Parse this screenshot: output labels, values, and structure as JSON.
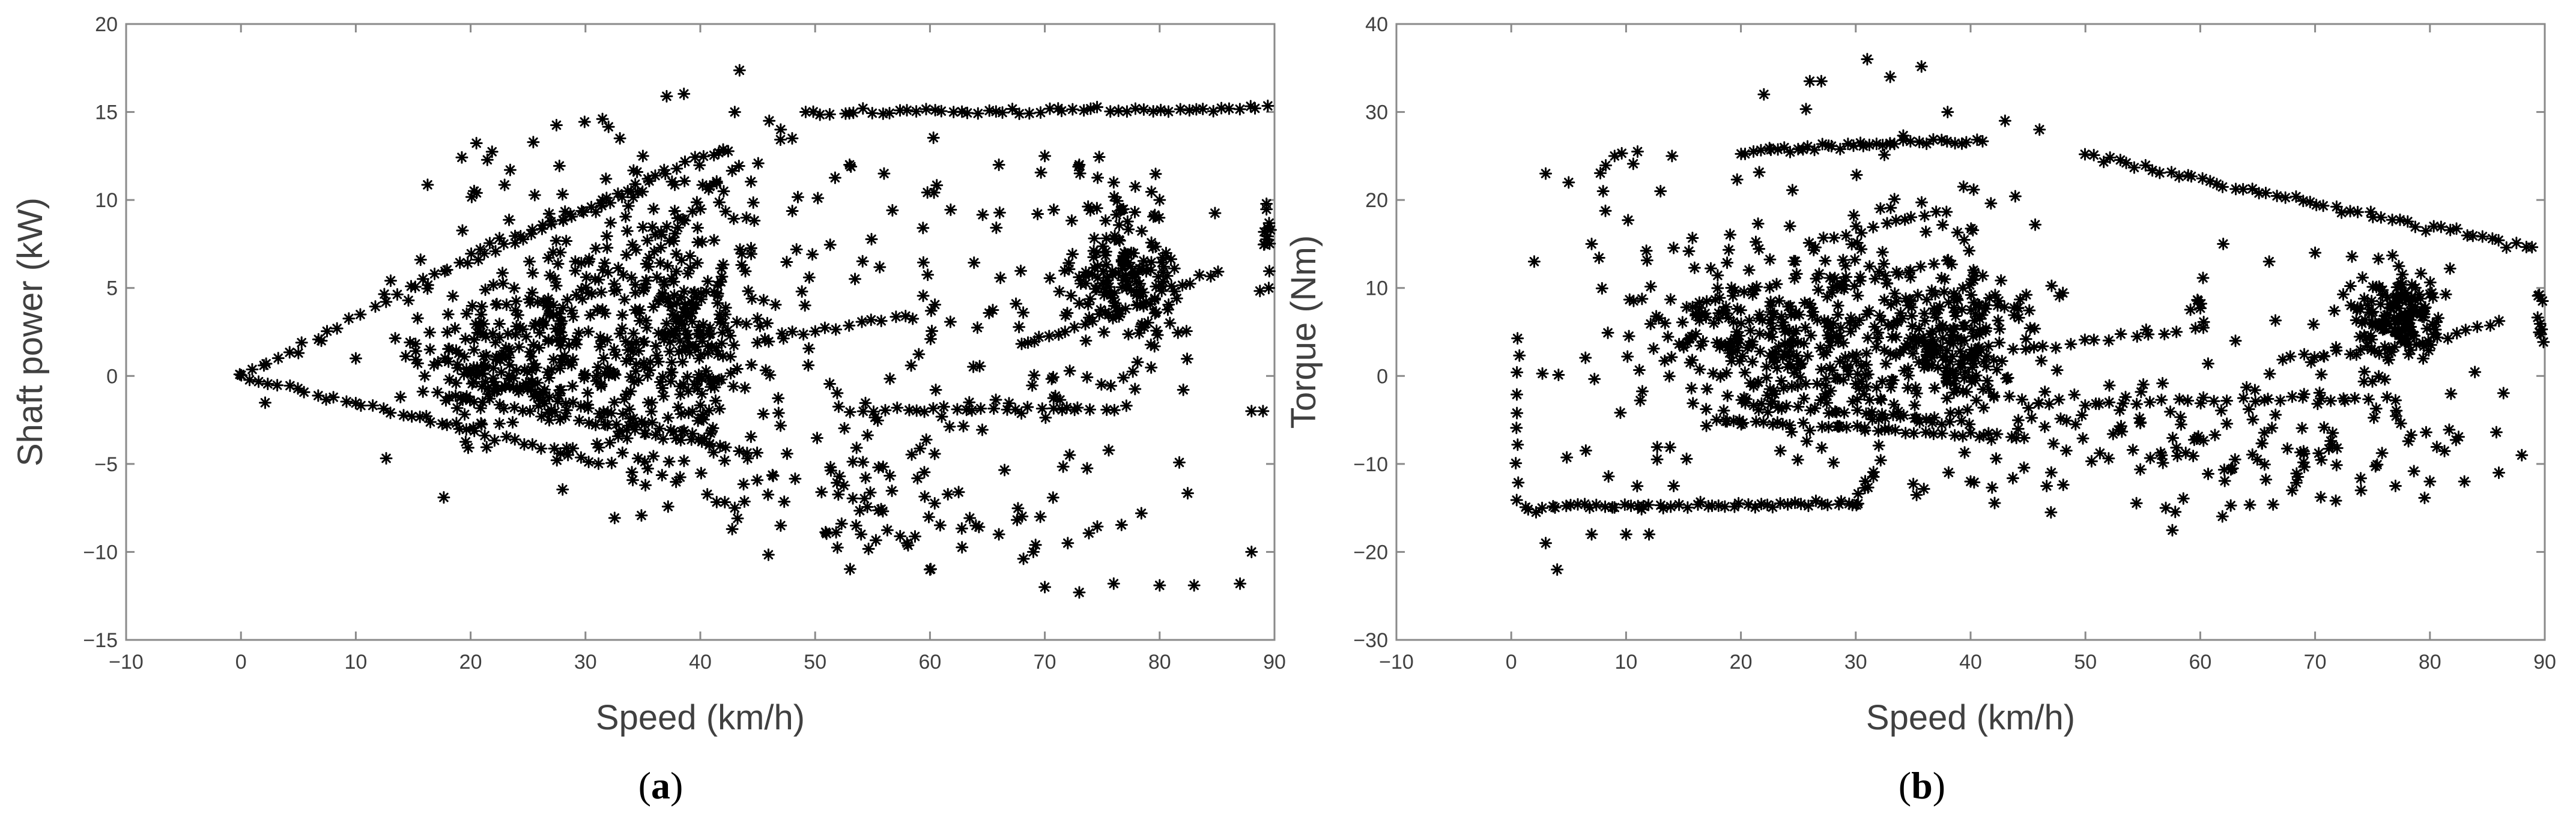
{
  "chart_data": [
    {
      "type": "scatter",
      "panel_label": "a",
      "xlabel": "Speed  (km/h)",
      "ylabel": "Shaft power  (kW)",
      "xlim": [
        -10,
        90
      ],
      "ylim": [
        -15,
        20
      ],
      "xticks": [
        -10,
        0,
        10,
        20,
        30,
        40,
        50,
        60,
        70,
        80,
        90
      ],
      "yticks": [
        -15,
        -10,
        -5,
        0,
        5,
        10,
        15,
        20
      ],
      "marker": "asterisk",
      "grid": false,
      "segments": [
        {
          "x0": 0,
          "y0": 0,
          "x1": 32,
          "y1": -5,
          "n": 40
        },
        {
          "x0": 0,
          "y0": 0,
          "x1": 18,
          "y1": 6,
          "n": 18
        },
        {
          "x0": 18,
          "y0": 6,
          "x1": 42,
          "y1": 13,
          "n": 30
        },
        {
          "x0": 20,
          "y0": 7,
          "x1": 35,
          "y1": 10.5,
          "n": 18
        },
        {
          "x0": 49,
          "y0": 15,
          "x1": 90,
          "y1": 15.2,
          "n": 55
        },
        {
          "x0": 68,
          "y0": 1.7,
          "x1": 78,
          "y1": 4,
          "n": 14
        },
        {
          "x0": 78,
          "y0": 4,
          "x1": 85,
          "y1": 6,
          "n": 10
        },
        {
          "x0": 17,
          "y0": -1,
          "x1": 45,
          "y1": -4.5,
          "n": 35
        },
        {
          "x0": 20,
          "y0": 0,
          "x1": 40,
          "y1": -3.5,
          "n": 30
        },
        {
          "x0": 52,
          "y0": -2,
          "x1": 77,
          "y1": -1.8,
          "n": 25
        },
        {
          "x0": 45,
          "y0": 2,
          "x1": 58,
          "y1": 3.5,
          "n": 14
        },
        {
          "x0": 30,
          "y0": 5,
          "x1": 38,
          "y1": 9,
          "n": 10
        },
        {
          "x0": 26,
          "y0": 3,
          "x1": 38,
          "y1": 7,
          "n": 10
        }
      ],
      "clusters": [
        {
          "cx": 21,
          "cy": 0.5,
          "sx": 3.5,
          "sy": 2.2,
          "n": 140
        },
        {
          "cx": 29,
          "cy": 1.5,
          "sx": 3,
          "sy": 3,
          "n": 110
        },
        {
          "cx": 39,
          "cy": 2,
          "sx": 3,
          "sy": 3,
          "n": 170
        },
        {
          "cx": 77,
          "cy": 6,
          "sx": 2.5,
          "sy": 2.2,
          "n": 150
        },
        {
          "cx": 89.5,
          "cy": 8,
          "sx": 0.4,
          "sy": 2,
          "n": 14
        },
        {
          "cx": 60,
          "cy": 5,
          "sx": 0.5,
          "sy": 5,
          "n": 14
        },
        {
          "cx": 35,
          "cy": 4,
          "sx": 10,
          "sy": 5,
          "n": 140
        },
        {
          "cx": 55,
          "cy": -6,
          "sx": 12,
          "sy": 3,
          "n": 110
        },
        {
          "cx": 40,
          "cy": 8,
          "sx": 8,
          "sy": 4,
          "n": 80
        },
        {
          "cx": 72,
          "cy": 2,
          "sx": 5,
          "sy": 5,
          "n": 60
        }
      ],
      "points": [
        {
          "x": 2,
          "y": 0.6
        },
        {
          "x": 5,
          "y": 1.3
        },
        {
          "x": 7,
          "y": 2
        },
        {
          "x": 10,
          "y": 1
        },
        {
          "x": 60,
          "y": -11
        },
        {
          "x": 70,
          "y": -12
        },
        {
          "x": 73,
          "y": -12.3
        },
        {
          "x": 76,
          "y": -11.8
        },
        {
          "x": 80,
          "y": -11.9
        },
        {
          "x": 83,
          "y": -11.9
        },
        {
          "x": 87,
          "y": -11.8
        },
        {
          "x": 88,
          "y": -10
        },
        {
          "x": 66,
          "y": -9
        },
        {
          "x": 69,
          "y": -10
        },
        {
          "x": 72,
          "y": -9.5
        },
        {
          "x": 64,
          "y": -8.5
        },
        {
          "x": 89,
          "y": -2
        },
        {
          "x": 89.5,
          "y": 5
        },
        {
          "x": 73,
          "y": 12
        },
        {
          "x": 70,
          "y": 12.5
        },
        {
          "x": 76,
          "y": 11
        },
        {
          "x": 80,
          "y": 10
        },
        {
          "x": 33,
          "y": 13.5
        },
        {
          "x": 43,
          "y": 15
        },
        {
          "x": 46,
          "y": 14.5
        },
        {
          "x": 48,
          "y": 13.5
        },
        {
          "x": 47,
          "y": 14
        },
        {
          "x": 35,
          "y": 12.5
        },
        {
          "x": 53,
          "y": 12
        },
        {
          "x": 56,
          "y": 11.5
        },
        {
          "x": 66,
          "y": 12
        },
        {
          "x": 88,
          "y": -2
        },
        {
          "x": 58,
          "y": -9.5
        },
        {
          "x": 54,
          "y": -9
        },
        {
          "x": 47,
          "y": -8.5
        },
        {
          "x": 43,
          "y": -7.5
        }
      ]
    },
    {
      "type": "scatter",
      "panel_label": "b",
      "xlabel": "Speed  (km/h)",
      "ylabel": "Torque  (Nm)",
      "xlim": [
        -10,
        90
      ],
      "ylim": [
        -30,
        40
      ],
      "xticks": [
        -10,
        0,
        10,
        20,
        30,
        40,
        50,
        60,
        70,
        80,
        90
      ],
      "yticks": [
        -30,
        -20,
        -10,
        0,
        10,
        20,
        30,
        40
      ],
      "marker": "asterisk",
      "grid": false,
      "segments": [
        {
          "x0": 0.5,
          "y0": 4,
          "x1": 0.5,
          "y1": -14,
          "n": 10
        },
        {
          "x0": 1,
          "y0": -15,
          "x1": 30,
          "y1": -14.5,
          "n": 50
        },
        {
          "x0": 30,
          "y0": -14.5,
          "x1": 32,
          "y1": -10,
          "n": 8
        },
        {
          "x0": 20,
          "y0": 25.5,
          "x1": 33,
          "y1": 26.5,
          "n": 25
        },
        {
          "x0": 33,
          "y0": 26.5,
          "x1": 41,
          "y1": 26.5,
          "n": 14
        },
        {
          "x0": 50,
          "y0": 25,
          "x1": 89,
          "y1": 14.5,
          "n": 55
        },
        {
          "x0": 67,
          "y0": 2,
          "x1": 78,
          "y1": 3.5,
          "n": 12
        },
        {
          "x0": 78,
          "y0": 3.5,
          "x1": 86,
          "y1": 6,
          "n": 10
        },
        {
          "x0": 50,
          "y0": -3,
          "x1": 77,
          "y1": -2.5,
          "n": 25
        },
        {
          "x0": 17,
          "y0": -5,
          "x1": 45,
          "y1": -7,
          "n": 35
        },
        {
          "x0": 20,
          "y0": -3,
          "x1": 40,
          "y1": -5.5,
          "n": 25
        },
        {
          "x0": 45,
          "y0": 3,
          "x1": 58,
          "y1": 5,
          "n": 12
        },
        {
          "x0": 26,
          "y0": 15,
          "x1": 38,
          "y1": 19,
          "n": 12
        },
        {
          "x0": 28,
          "y0": 10,
          "x1": 38,
          "y1": 13,
          "n": 10
        }
      ],
      "clusters": [
        {
          "cx": 20,
          "cy": 3,
          "sx": 3.5,
          "sy": 4.5,
          "n": 130
        },
        {
          "cx": 29,
          "cy": 3,
          "sx": 3,
          "sy": 5,
          "n": 110
        },
        {
          "cx": 38,
          "cy": 4,
          "sx": 3,
          "sy": 4,
          "n": 170
        },
        {
          "cx": 77,
          "cy": 7,
          "sx": 2.2,
          "sy": 2.5,
          "n": 150
        },
        {
          "cx": 89.5,
          "cy": 7,
          "sx": 0.4,
          "sy": 2,
          "n": 12
        },
        {
          "cx": 60,
          "cy": 5,
          "sx": 0.5,
          "sy": 3,
          "n": 10
        },
        {
          "cx": 30,
          "cy": 8,
          "sx": 10,
          "sy": 9,
          "n": 170
        },
        {
          "cx": 55,
          "cy": -8,
          "sx": 12,
          "sy": 4,
          "n": 120
        },
        {
          "cx": 72,
          "cy": -3,
          "sx": 6,
          "sy": 5,
          "n": 50
        },
        {
          "cx": 12,
          "cy": 5,
          "sx": 4,
          "sy": 10,
          "n": 40
        }
      ],
      "points": [
        {
          "x": 4,
          "y": -22
        },
        {
          "x": 3,
          "y": -19
        },
        {
          "x": 7,
          "y": -18
        },
        {
          "x": 10,
          "y": -18
        },
        {
          "x": 12,
          "y": -18
        },
        {
          "x": 2,
          "y": 13
        },
        {
          "x": 3,
          "y": 23
        },
        {
          "x": 5,
          "y": 22
        },
        {
          "x": 7,
          "y": 15
        },
        {
          "x": 8,
          "y": 21
        },
        {
          "x": 9,
          "y": 25
        },
        {
          "x": 11,
          "y": 25.5
        },
        {
          "x": 13,
          "y": 21
        },
        {
          "x": 14,
          "y": 25
        },
        {
          "x": 22,
          "y": 32
        },
        {
          "x": 26,
          "y": 33.5
        },
        {
          "x": 27,
          "y": 33.5
        },
        {
          "x": 31,
          "y": 36
        },
        {
          "x": 33,
          "y": 34
        },
        {
          "x": 38,
          "y": 30
        },
        {
          "x": 43,
          "y": 29
        },
        {
          "x": 46,
          "y": 28
        },
        {
          "x": 70,
          "y": 14
        },
        {
          "x": 66,
          "y": 13
        },
        {
          "x": 62,
          "y": 15
        },
        {
          "x": 68,
          "y": -13
        },
        {
          "x": 77,
          "y": -12.5
        },
        {
          "x": 80,
          "y": -12
        },
        {
          "x": 83,
          "y": -12
        },
        {
          "x": 86,
          "y": -11
        },
        {
          "x": 88,
          "y": -9
        },
        {
          "x": 74,
          "y": -13
        },
        {
          "x": 57,
          "y": -15
        },
        {
          "x": 47,
          "y": -15.5
        },
        {
          "x": 40,
          "y": -12
        }
      ]
    }
  ],
  "captions": {
    "a": "a",
    "b": "b"
  }
}
